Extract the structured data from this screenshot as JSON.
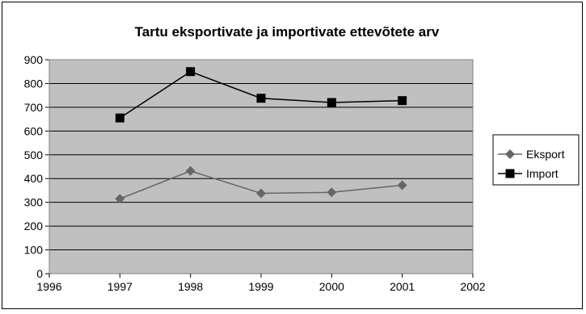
{
  "chart_data": {
    "type": "line",
    "title": "Tartu eksportivate ja importivate ettevõtete arv",
    "xlabel": "",
    "ylabel": "",
    "x": [
      1997,
      1998,
      1999,
      2000,
      2001
    ],
    "xlim": [
      1996,
      2002
    ],
    "ylim": [
      0,
      900
    ],
    "x_ticks": [
      "1996",
      "1997",
      "1998",
      "1999",
      "2000",
      "2001",
      "2002"
    ],
    "y_ticks": [
      "0",
      "100",
      "200",
      "300",
      "400",
      "500",
      "600",
      "700",
      "800",
      "900"
    ],
    "grid": true,
    "plot_background": "#c0c0c0",
    "legend_position": "right",
    "series": [
      {
        "name": "Eksport",
        "values": [
          315,
          432,
          338,
          342,
          372
        ],
        "color": "#666666",
        "marker": "diamond"
      },
      {
        "name": "Import",
        "values": [
          655,
          850,
          738,
          720,
          728
        ],
        "color": "#000000",
        "marker": "square"
      }
    ]
  }
}
